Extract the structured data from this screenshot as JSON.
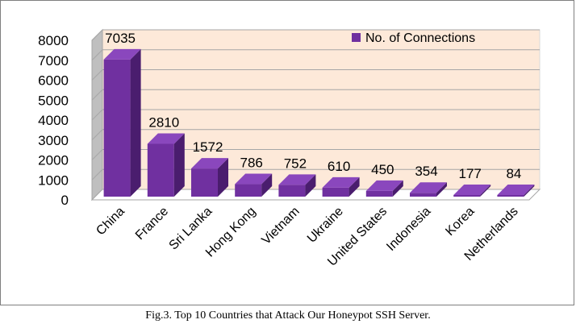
{
  "chart_data": {
    "type": "bar",
    "style": "3d-column",
    "categories": [
      "China",
      "France",
      "Sri Lanka",
      "Hong Kong",
      "Vietnam",
      "Ukraine",
      "United States",
      "Indonesia",
      "Korea",
      "Netherlands"
    ],
    "series": [
      {
        "name": "No. of Connections",
        "values": [
          7035,
          2810,
          1572,
          786,
          752,
          610,
          450,
          354,
          177,
          84
        ]
      }
    ],
    "title": "",
    "xlabel": "",
    "ylabel": "",
    "ylim": [
      0,
      8000
    ],
    "yticks": [
      "0",
      "1000",
      "2000",
      "3000",
      "4000",
      "5000",
      "6000",
      "7000",
      "8000"
    ],
    "grid": true,
    "legend_position": "top-right",
    "data_labels": [
      "7035",
      "2810",
      "1572",
      "786",
      "752",
      "610",
      "450",
      "354",
      "177",
      "84"
    ],
    "colors": {
      "bar_front": "#7030a0",
      "bar_top": "#8a47bd",
      "bar_side": "#4a1d6e",
      "back_wall": "#fde9d9",
      "side_wall": "#bfbfbf",
      "floor": "#ffffff",
      "grid": "#a6a6a6"
    }
  },
  "caption": "Fig.3. Top 10 Countries that Attack Our Honeypot SSH Server."
}
